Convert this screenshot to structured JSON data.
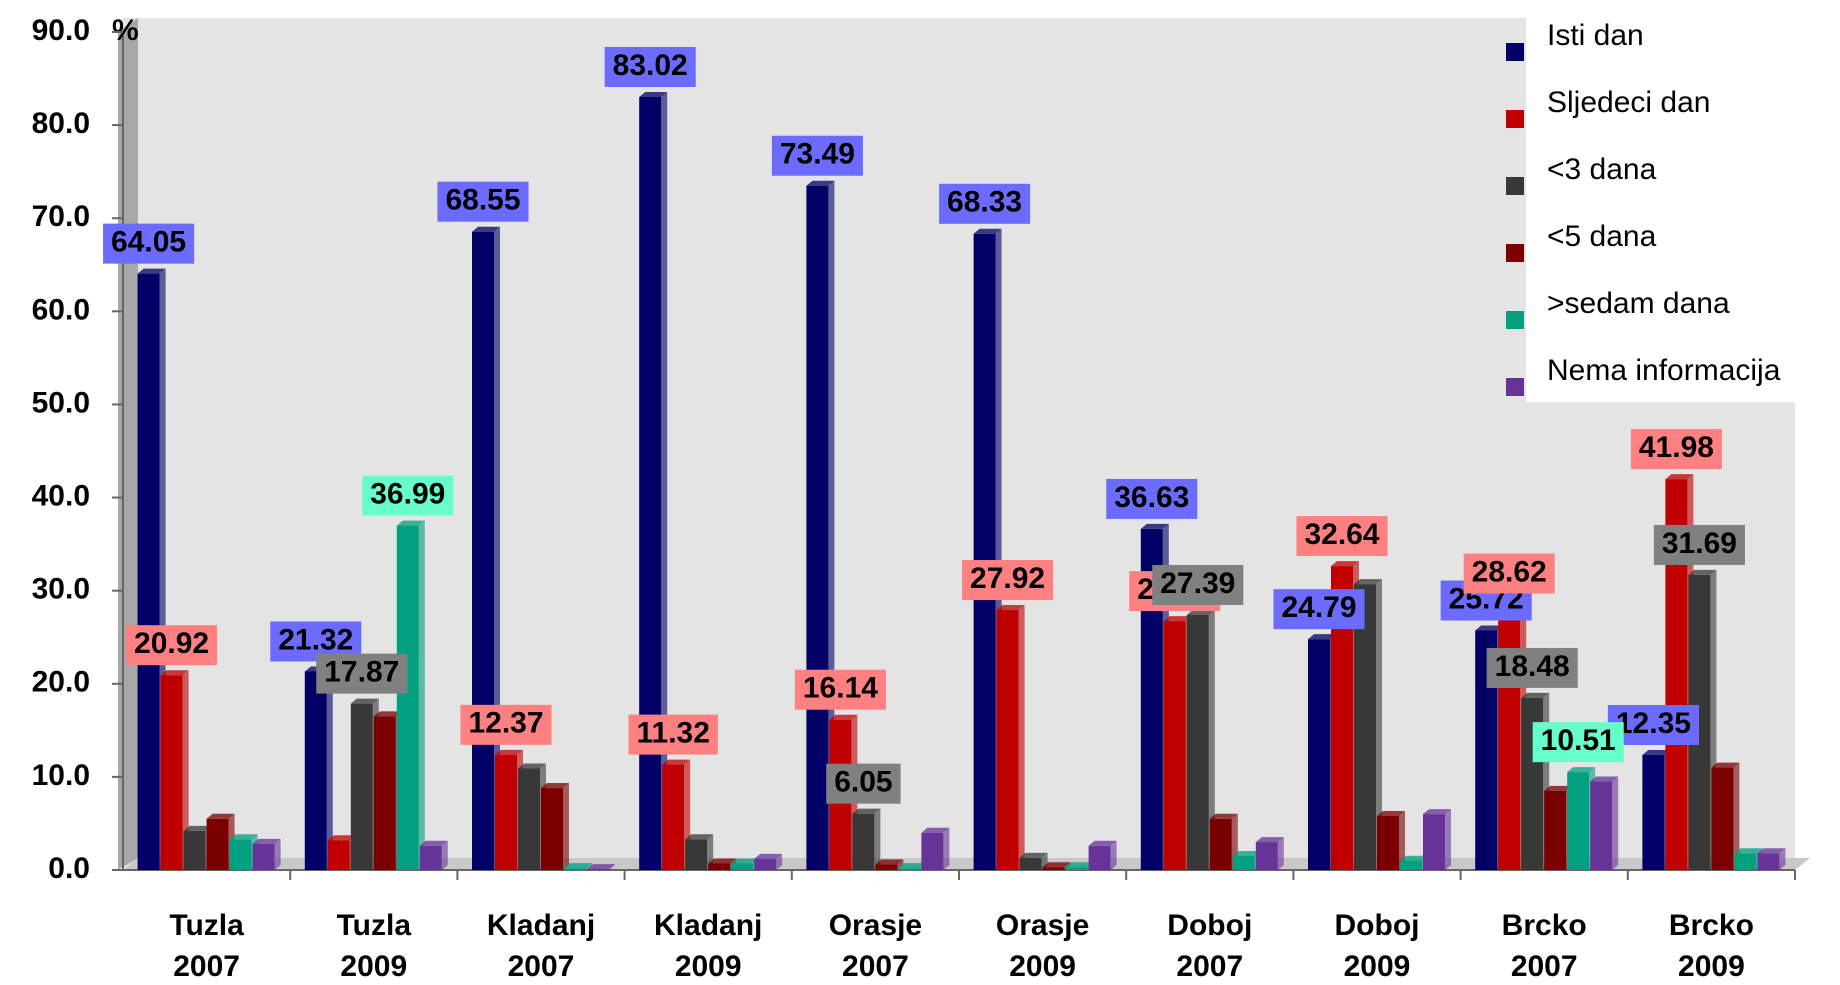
{
  "chart_data": {
    "type": "bar",
    "y_unit": "%",
    "categories": [
      "Tuzla 2007",
      "Tuzla 2009",
      "Kladanj 2007",
      "Kladanj 2009",
      "Orasje 2007",
      "Orasje 2009",
      "Doboj 2007",
      "Doboj 2009",
      "Brcko 2007",
      "Brcko 2009"
    ],
    "series": [
      {
        "name": "Isti dan",
        "color": "#000066",
        "label_color": "#6b6bff",
        "values": [
          64.05,
          21.32,
          68.55,
          83.02,
          73.49,
          68.33,
          36.63,
          24.79,
          25.72,
          12.35
        ],
        "value_labels": [
          "64.05",
          "21.32",
          "68.55",
          "83.02",
          "73.49",
          "68.33",
          "36.63",
          "24.79",
          "25.72",
          "12.35"
        ]
      },
      {
        "name": "Sljedeci dan",
        "color": "#c00000",
        "label_color": "#ff8080",
        "values": [
          20.92,
          3.2,
          12.37,
          11.32,
          16.14,
          27.92,
          26.73,
          32.64,
          28.62,
          41.98
        ],
        "value_labels": [
          "20.92",
          null,
          "12.37",
          "11.32",
          "16.14",
          "27.92",
          "26.73",
          "32.64",
          "28.62",
          "41.98"
        ]
      },
      {
        "name": "<3 dana",
        "color": "#383838",
        "label_color": "#808080",
        "values": [
          4.2,
          17.87,
          10.9,
          3.3,
          6.05,
          1.3,
          27.39,
          30.7,
          18.48,
          31.69
        ],
        "value_labels": [
          null,
          "17.87",
          null,
          null,
          "6.05",
          null,
          "27.39",
          null,
          "18.48",
          "31.69"
        ]
      },
      {
        "name": "<5 dana",
        "color": "#7a0000",
        "label_color": "#808080",
        "values": [
          5.5,
          16.5,
          8.8,
          0.7,
          0.6,
          0.3,
          5.5,
          5.8,
          8.5,
          11.0
        ],
        "value_labels": [
          null,
          null,
          null,
          null,
          null,
          null,
          null,
          null,
          null,
          null
        ]
      },
      {
        "name": ">sedam dana",
        "color": "#00a080",
        "label_color": "#66ffcc",
        "values": [
          3.3,
          36.99,
          0.2,
          0.7,
          0.2,
          0.3,
          1.5,
          1.0,
          10.51,
          1.8
        ],
        "value_labels": [
          null,
          "36.99",
          null,
          null,
          null,
          null,
          null,
          null,
          "10.51",
          null
        ]
      },
      {
        "name": "Nema informacija",
        "color": "#663399",
        "label_color": "#808080",
        "values": [
          2.8,
          2.6,
          0.1,
          1.2,
          4.0,
          2.6,
          3.0,
          6.0,
          9.5,
          1.8
        ],
        "value_labels": [
          null,
          null,
          null,
          null,
          null,
          null,
          null,
          null,
          null,
          null
        ]
      }
    ],
    "ylim": [
      0,
      90
    ],
    "yticks": [
      {
        "value": 0,
        "label": "0.0"
      },
      {
        "value": 10,
        "label": "10.0"
      },
      {
        "value": 20,
        "label": "20.0"
      },
      {
        "value": 30,
        "label": "30.0"
      },
      {
        "value": 40,
        "label": "40.0"
      },
      {
        "value": 50,
        "label": "50.0"
      },
      {
        "value": 60,
        "label": "60.0"
      },
      {
        "value": 70,
        "label": "70.0"
      },
      {
        "value": 80,
        "label": "80.0"
      },
      {
        "value": 90,
        "label": "90.0"
      }
    ],
    "legend": "top-right"
  }
}
